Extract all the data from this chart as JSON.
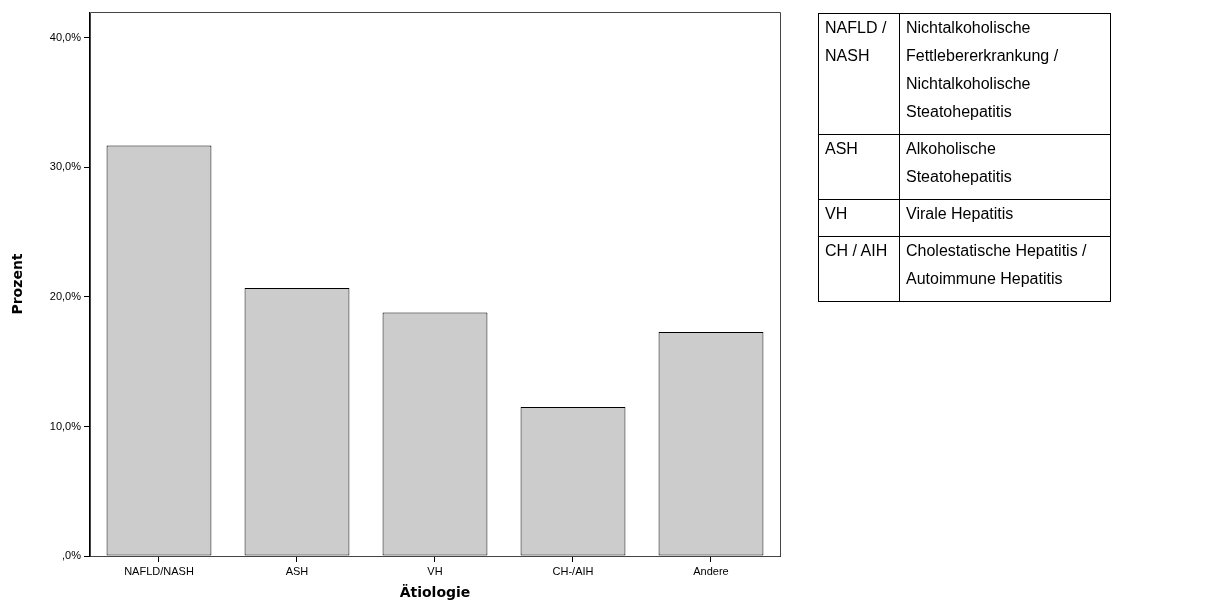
{
  "chart_data": {
    "type": "bar",
    "xlabel": "Ätiologie",
    "ylabel": "Prozent",
    "categories": [
      "NAFLD/NASH",
      "ASH",
      "VH",
      "CH-/AIH",
      "Andere"
    ],
    "values": [
      31.7,
      20.7,
      18.8,
      11.5,
      17.3
    ],
    "color": "#cccccc",
    "ylim": [
      0,
      42
    ],
    "yticks": [
      {
        "value": 0,
        "label": ",0%"
      },
      {
        "value": 10,
        "label": "10,0%"
      },
      {
        "value": 20,
        "label": "20,0%"
      },
      {
        "value": 30,
        "label": "30,0%"
      },
      {
        "value": 40,
        "label": "40,0%"
      }
    ],
    "grid": false,
    "legend": false,
    "annotations": [
      "NAFLD / NASH",
      "Nichtalkoholische Fettlebererkrankung / Nichtalkoholische Steatohepatitis",
      "ASH",
      "Alkoholische Steatohepatitis",
      "VH",
      "Virale Hepatitis",
      "CH / AIH",
      "Cholestatische Hepatitis / Autoimmune Hepatitis"
    ]
  }
}
